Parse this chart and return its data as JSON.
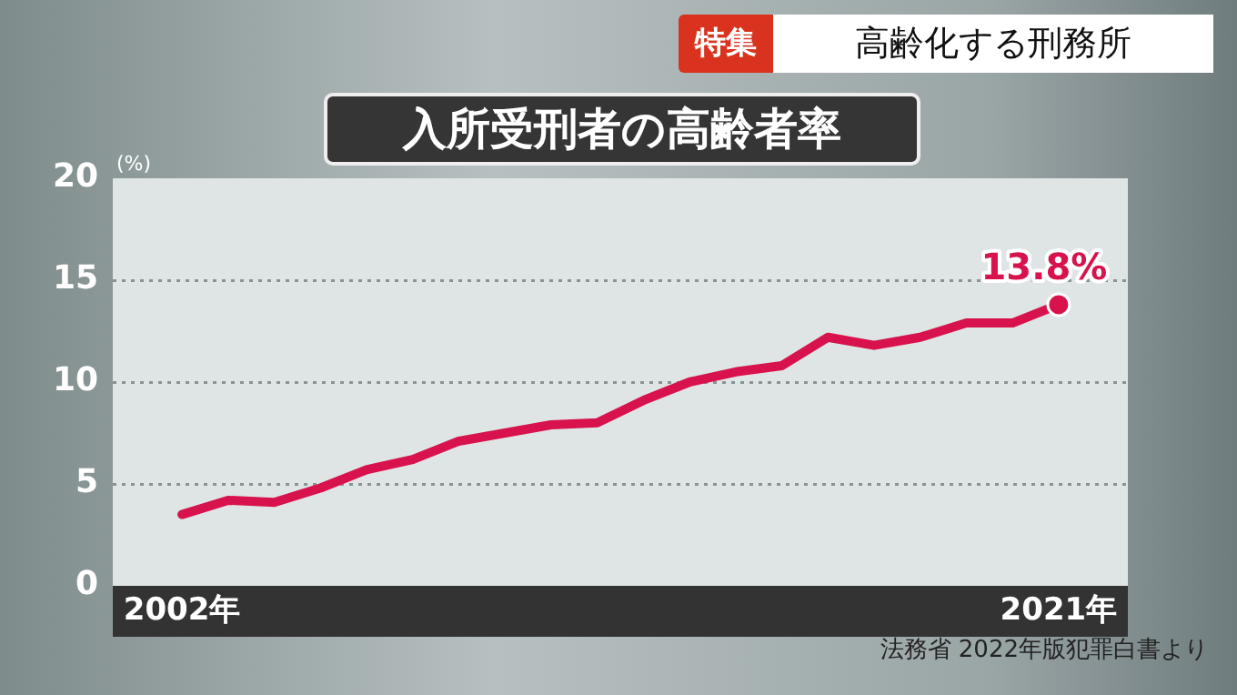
{
  "chart_data": {
    "type": "line",
    "title": "入所受刑者の高齢者率",
    "subtitle": "高齢化する刑務所",
    "ylabel": "(%)",
    "annotations": [
      "特集",
      "法務省 2022年版犯罪白書より"
    ],
    "x": [
      2002,
      2003,
      2004,
      2005,
      2006,
      2007,
      2008,
      2009,
      2010,
      2011,
      2012,
      2013,
      2014,
      2015,
      2016,
      2017,
      2018,
      2019,
      2020,
      2021
    ],
    "series": [
      {
        "color": "#d8124c",
        "values": [
          3.5,
          4.2,
          4.1,
          4.8,
          5.7,
          6.2,
          7.1,
          7.5,
          7.9,
          8.0,
          9.1,
          10.0,
          10.5,
          10.8,
          12.2,
          11.8,
          12.2,
          12.9,
          12.9,
          13.8
        ],
        "value_labels": [
          null,
          null,
          null,
          null,
          null,
          null,
          null,
          null,
          null,
          null,
          null,
          null,
          null,
          null,
          null,
          null,
          null,
          null,
          null,
          "13.8%"
        ]
      }
    ],
    "xlim": [
      2000.5,
      2022.5
    ],
    "xticks": [
      {
        "value": 2002,
        "label": "2002年"
      },
      {
        "value": 2021,
        "label": "2021年"
      }
    ],
    "ylim": [
      0,
      20
    ],
    "yticks": [
      0,
      5,
      10,
      15,
      20
    ],
    "grid": "y",
    "legend": false
  }
}
